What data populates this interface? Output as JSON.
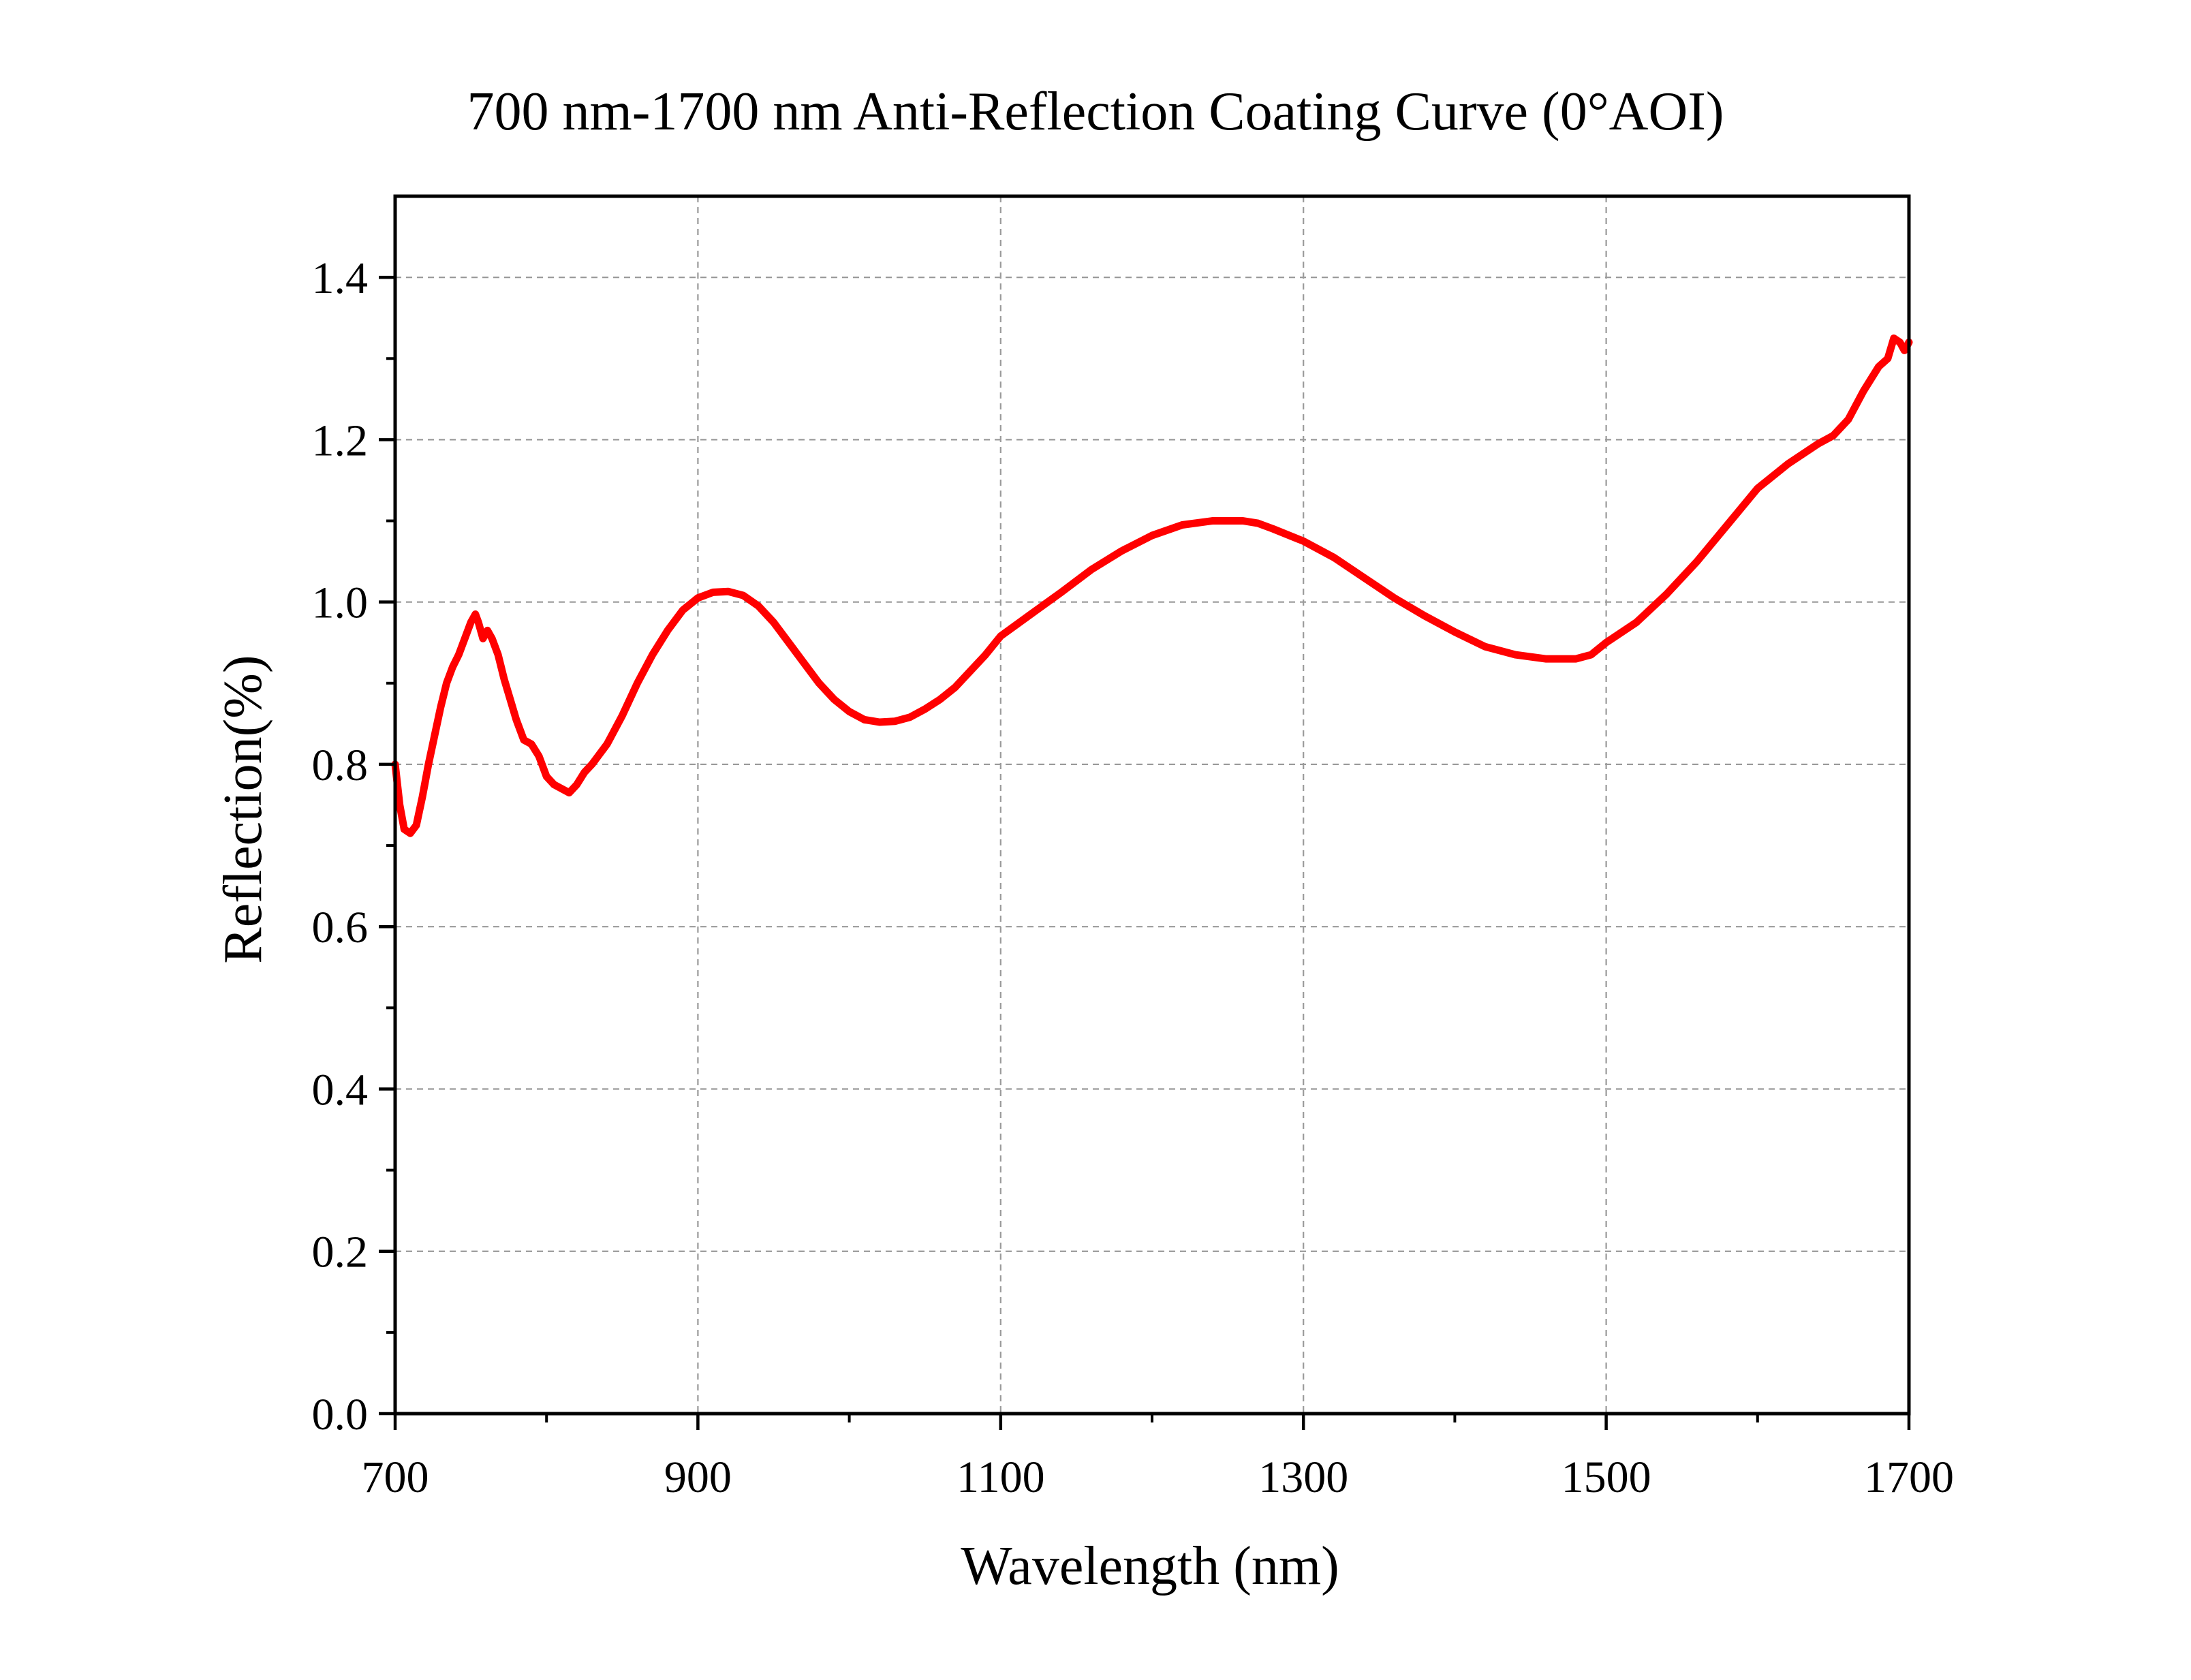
{
  "chart_data": {
    "type": "line",
    "title": "700 nm-1700 nm Anti-Reflection Coating Curve (0°AOI)",
    "xlabel": "Wavelength (nm)",
    "ylabel": "Reflection(%)",
    "xlim": [
      700,
      1700
    ],
    "ylim": [
      0.0,
      1.5
    ],
    "x_ticks": [
      "700",
      "900",
      "1100",
      "1300",
      "1500",
      "1700"
    ],
    "y_ticks": [
      "0.0",
      "0.2",
      "0.4",
      "0.6",
      "0.8",
      "1.0",
      "1.2",
      "1.4"
    ],
    "grid": true,
    "legend": "none",
    "series": [
      {
        "color": "#ff0000",
        "x": [
          700,
          703,
          706,
          710,
          714,
          718,
          722,
          726,
          730,
          734,
          738,
          742,
          746,
          750,
          753,
          755,
          758,
          761,
          764,
          768,
          772,
          776,
          780,
          785,
          790,
          795,
          800,
          805,
          810,
          815,
          820,
          825,
          830,
          840,
          850,
          860,
          870,
          880,
          890,
          900,
          910,
          920,
          930,
          940,
          950,
          960,
          970,
          980,
          990,
          1000,
          1010,
          1020,
          1030,
          1040,
          1050,
          1060,
          1070,
          1080,
          1090,
          1100,
          1120,
          1140,
          1160,
          1180,
          1200,
          1220,
          1240,
          1260,
          1270,
          1280,
          1300,
          1320,
          1340,
          1360,
          1380,
          1400,
          1420,
          1440,
          1460,
          1480,
          1490,
          1500,
          1520,
          1540,
          1560,
          1580,
          1600,
          1620,
          1640,
          1650,
          1660,
          1670,
          1680,
          1686,
          1690,
          1694,
          1697,
          1700
        ],
        "y": [
          0.8,
          0.75,
          0.72,
          0.715,
          0.725,
          0.76,
          0.8,
          0.835,
          0.87,
          0.9,
          0.92,
          0.935,
          0.955,
          0.975,
          0.985,
          0.975,
          0.955,
          0.965,
          0.955,
          0.935,
          0.905,
          0.88,
          0.855,
          0.83,
          0.825,
          0.81,
          0.785,
          0.775,
          0.77,
          0.765,
          0.775,
          0.79,
          0.8,
          0.825,
          0.86,
          0.9,
          0.935,
          0.965,
          0.99,
          1.005,
          1.012,
          1.013,
          1.008,
          0.995,
          0.975,
          0.95,
          0.925,
          0.9,
          0.88,
          0.865,
          0.855,
          0.852,
          0.853,
          0.858,
          0.868,
          0.88,
          0.895,
          0.915,
          0.935,
          0.958,
          0.985,
          1.012,
          1.04,
          1.063,
          1.082,
          1.095,
          1.1,
          1.1,
          1.097,
          1.09,
          1.075,
          1.055,
          1.03,
          1.005,
          0.983,
          0.963,
          0.945,
          0.935,
          0.93,
          0.93,
          0.935,
          0.95,
          0.975,
          1.01,
          1.05,
          1.095,
          1.14,
          1.17,
          1.195,
          1.205,
          1.225,
          1.26,
          1.29,
          1.3,
          1.325,
          1.32,
          1.31,
          1.32
        ]
      }
    ]
  }
}
